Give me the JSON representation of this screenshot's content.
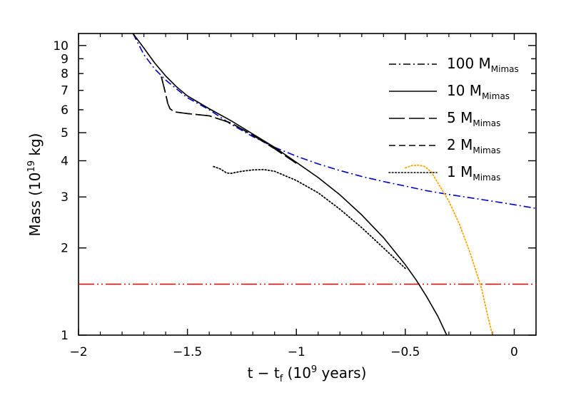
{
  "chart_data": {
    "type": "line",
    "title": "",
    "xlabel": "t − t",
    "xlabel_sub": "f",
    "xlabel_paren": " (10",
    "xlabel_sup": "9",
    "xlabel_end": " years)",
    "ylabel": "Mass (10",
    "ylabel_sup": "19",
    "ylabel_end": " kg)",
    "xlim": [
      -2.0,
      0.1
    ],
    "ylim": [
      1,
      11
    ],
    "yscale": "log",
    "x_ticks": [
      {
        "value": -2,
        "label": "−2"
      },
      {
        "value": -1.5,
        "label": "−1.5"
      },
      {
        "value": -1,
        "label": "−1"
      },
      {
        "value": -0.5,
        "label": "−0.5"
      },
      {
        "value": 0,
        "label": "0"
      }
    ],
    "y_ticks": [
      {
        "value": 1,
        "label": "1"
      },
      {
        "value": 2,
        "label": "2"
      },
      {
        "value": 3,
        "label": "3"
      },
      {
        "value": 4,
        "label": "4"
      },
      {
        "value": 5,
        "label": "5"
      },
      {
        "value": 6,
        "label": "6"
      },
      {
        "value": 7,
        "label": "7"
      },
      {
        "value": 8,
        "label": "8"
      },
      {
        "value": 9,
        "label": "9"
      },
      {
        "value": 10,
        "label": "10"
      }
    ],
    "legend": [
      {
        "label": "100 M",
        "sub": "Mimas",
        "dash": "dashdot"
      },
      {
        "label": "10 M",
        "sub": "Mimas",
        "dash": "solid"
      },
      {
        "label": "5 M",
        "sub": "Mimas",
        "dash": "longdash"
      },
      {
        "label": "2 M",
        "sub": "Mimas",
        "dash": "dashed"
      },
      {
        "label": "1 M",
        "sub": "Mimas",
        "dash": "dotted"
      }
    ],
    "colors": {
      "black": "#000000",
      "blue": "#0000cc",
      "red": "#e60000",
      "orange": "#ffa500"
    },
    "series": [
      {
        "name": "10 M_Mimas",
        "color": "black",
        "dash": "solid",
        "x": [
          -1.75,
          -1.7,
          -1.65,
          -1.6,
          -1.55,
          -1.5,
          -1.4,
          -1.3,
          -1.2,
          -1.1,
          -1.0,
          -0.9,
          -0.8,
          -0.7,
          -0.6,
          -0.5,
          -0.45,
          -0.4,
          -0.35,
          -0.31
        ],
        "y": [
          11.0,
          9.8,
          8.7,
          7.85,
          7.2,
          6.7,
          6.05,
          5.5,
          4.95,
          4.45,
          3.95,
          3.5,
          3.05,
          2.6,
          2.17,
          1.75,
          1.55,
          1.35,
          1.16,
          1.0
        ]
      },
      {
        "name": "5 M_Mimas",
        "color": "black",
        "dash": "longdash",
        "x": [
          -1.62,
          -1.61,
          -1.6,
          -1.59,
          -1.58,
          -1.56,
          -1.5,
          -1.4,
          -1.3,
          -1.2,
          -1.1,
          -1.0
        ],
        "y": [
          7.8,
          7.3,
          6.8,
          6.3,
          6.05,
          5.9,
          5.82,
          5.72,
          5.4,
          4.9,
          4.4,
          3.92
        ]
      },
      {
        "name": "2 M_Mimas",
        "color": "black",
        "dash": "dashed",
        "x": [
          -1.62,
          -1.61,
          -1.6,
          -1.59,
          -1.58,
          -1.56,
          -1.5,
          -1.4,
          -1.3,
          -1.2,
          -1.1,
          -1.0
        ],
        "y": [
          7.8,
          7.3,
          6.8,
          6.3,
          6.05,
          5.9,
          5.82,
          5.72,
          5.4,
          4.9,
          4.4,
          3.92
        ]
      },
      {
        "name": "1 M_Mimas",
        "color": "black",
        "dash": "dotted",
        "x": [
          -1.38,
          -1.35,
          -1.32,
          -1.3,
          -1.25,
          -1.2,
          -1.15,
          -1.1,
          -1.0,
          -0.9,
          -0.8,
          -0.7,
          -0.6,
          -0.5
        ],
        "y": [
          3.82,
          3.75,
          3.63,
          3.62,
          3.68,
          3.72,
          3.73,
          3.68,
          3.42,
          3.1,
          2.72,
          2.35,
          2.0,
          1.7
        ]
      },
      {
        "name": "100 M_Mimas",
        "color": "blue",
        "dash": "dashdot",
        "x": [
          -1.75,
          -1.7,
          -1.65,
          -1.6,
          -1.5,
          -1.4,
          -1.3,
          -1.2,
          -1.1,
          -1.0,
          -0.9,
          -0.8,
          -0.7,
          -0.6,
          -0.5,
          -0.4,
          -0.3,
          -0.2,
          -0.1,
          0.0,
          0.1
        ],
        "y": [
          11.0,
          9.3,
          8.3,
          7.6,
          6.6,
          6.0,
          5.35,
          4.85,
          4.45,
          4.15,
          3.9,
          3.7,
          3.53,
          3.39,
          3.27,
          3.15,
          3.06,
          2.98,
          2.9,
          2.82,
          2.74
        ]
      },
      {
        "name": "orange dotted",
        "color": "orange",
        "dash": "dotted",
        "x": [
          -0.5,
          -0.47,
          -0.44,
          -0.41,
          -0.38,
          -0.35,
          -0.3,
          -0.25,
          -0.2,
          -0.15,
          -0.12,
          -0.1
        ],
        "y": [
          3.78,
          3.85,
          3.86,
          3.82,
          3.65,
          3.35,
          2.9,
          2.4,
          1.9,
          1.45,
          1.15,
          1.0
        ]
      },
      {
        "name": "horizontal reference",
        "color": "red",
        "dash": "dashdotdot",
        "x": [
          -2.0,
          0.1
        ],
        "y": [
          1.5,
          1.5
        ]
      }
    ]
  }
}
